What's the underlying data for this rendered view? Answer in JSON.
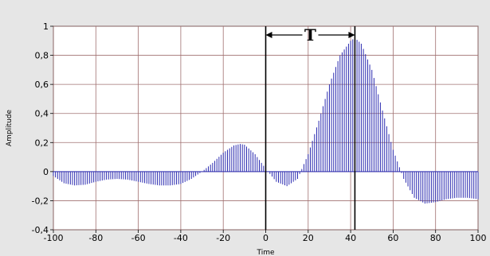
{
  "chart_data": {
    "type": "line",
    "render_style": "stem",
    "title": "",
    "xlabel": "Time",
    "ylabel": "Amplitude",
    "xlim": [
      -100,
      100
    ],
    "ylim": [
      -0.4,
      1.0
    ],
    "x_ticks": [
      -100,
      -80,
      -60,
      -40,
      -20,
      0,
      20,
      40,
      60,
      80,
      100
    ],
    "x_tick_labels": [
      "-100",
      "-80",
      "-60",
      "-40",
      "-20",
      "0",
      "20",
      "40",
      "60",
      "80",
      "100"
    ],
    "y_ticks": [
      -0.4,
      -0.2,
      0,
      0.2,
      0.4,
      0.6,
      0.8,
      1.0
    ],
    "y_tick_labels": [
      "-0,4",
      "-0,2",
      "0",
      "0,2",
      "0,4",
      "0,6",
      "0,8",
      "1"
    ],
    "grid": true,
    "colors": {
      "stem": "#2b2bb0",
      "grid": "#a07070",
      "plot_bg": "#ffffff",
      "frame_bg": "#e6e6e6",
      "marker": "#000000"
    },
    "series": [
      {
        "x": [
          -100,
          -95,
          -90,
          -85,
          -80,
          -75,
          -70,
          -65,
          -60,
          -55,
          -50,
          -45,
          -40,
          -35,
          -30,
          -25,
          -20,
          -15,
          -12,
          -10,
          -5,
          0,
          5,
          10,
          15,
          20,
          25,
          30,
          35,
          40,
          42,
          45,
          50,
          55,
          60,
          65,
          70,
          75,
          80,
          85,
          90,
          95,
          100
        ],
        "y": [
          -0.03,
          -0.08,
          -0.095,
          -0.09,
          -0.07,
          -0.055,
          -0.05,
          -0.055,
          -0.07,
          -0.085,
          -0.095,
          -0.095,
          -0.085,
          -0.05,
          0.0,
          0.06,
          0.13,
          0.18,
          0.19,
          0.185,
          0.12,
          0.02,
          -0.07,
          -0.1,
          -0.05,
          0.12,
          0.35,
          0.6,
          0.8,
          0.9,
          0.92,
          0.88,
          0.7,
          0.42,
          0.15,
          -0.05,
          -0.18,
          -0.22,
          -0.21,
          -0.19,
          -0.18,
          -0.18,
          -0.19
        ]
      }
    ],
    "markers": [
      {
        "x": 0,
        "label": ""
      },
      {
        "x": 42,
        "label": ""
      }
    ],
    "annotation": {
      "text": "T",
      "x_start": 0,
      "x_end": 42,
      "y": 0.94
    }
  }
}
